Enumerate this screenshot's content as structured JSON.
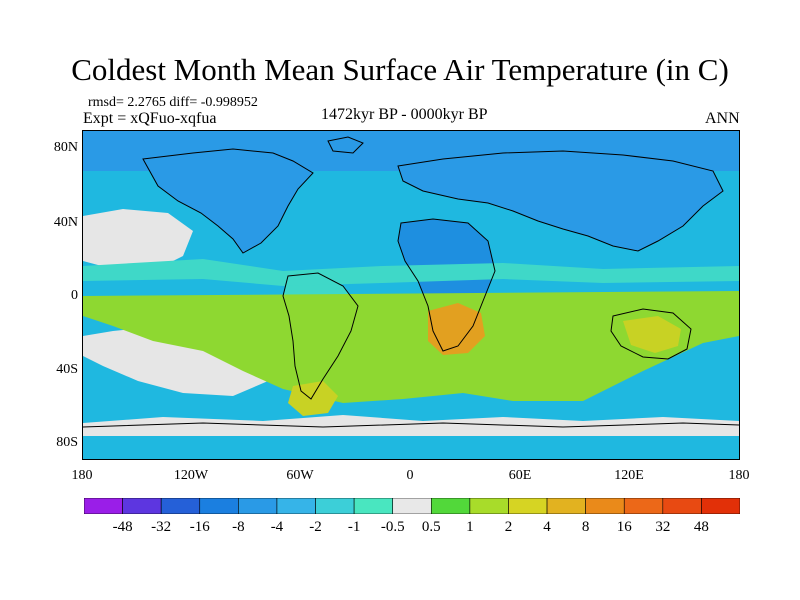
{
  "title": "Coldest Month Mean Surface Air Temperature (in C)",
  "stats": "rmsd= 2.2765 diff= -0.998952",
  "expt": "Expt = xQFuo-xqfua",
  "period": "1472kyr BP - 0000kyr BP",
  "season": "ANN",
  "lat_labels": [
    "80N",
    "40N",
    "0",
    "40S",
    "80S"
  ],
  "lon_labels": [
    "180",
    "120W",
    "60W",
    "0",
    "60E",
    "120E",
    "180"
  ],
  "colorbar": {
    "labels": [
      "-48",
      "-32",
      "-16",
      "-8",
      "-4",
      "-2",
      "-1",
      "-0.5",
      "0.5",
      "1",
      "2",
      "4",
      "8",
      "16",
      "32",
      "48"
    ],
    "colors": [
      "#9a1ee8",
      "#5d36e0",
      "#2560d8",
      "#1b7fe0",
      "#2a9ae6",
      "#36b4e8",
      "#3ccfd8",
      "#49e6c0",
      "#e8e8e8",
      "#52d83a",
      "#a8dc2a",
      "#d6d423",
      "#e2b220",
      "#ea8a1a",
      "#ec6818",
      "#e84a12",
      "#e23008"
    ]
  },
  "map_colors": {
    "ocean_mid": "#1fb8e0",
    "ocean_deep": "#1e8fe0",
    "land_cool": "#2a9ae6",
    "neutral": "#e6e6e6",
    "warm_green": "#8ed831",
    "warm_yellow": "#c8d224",
    "warm_orange": "#e2a020",
    "teal": "#3fd8c8",
    "coast": "#000000"
  }
}
